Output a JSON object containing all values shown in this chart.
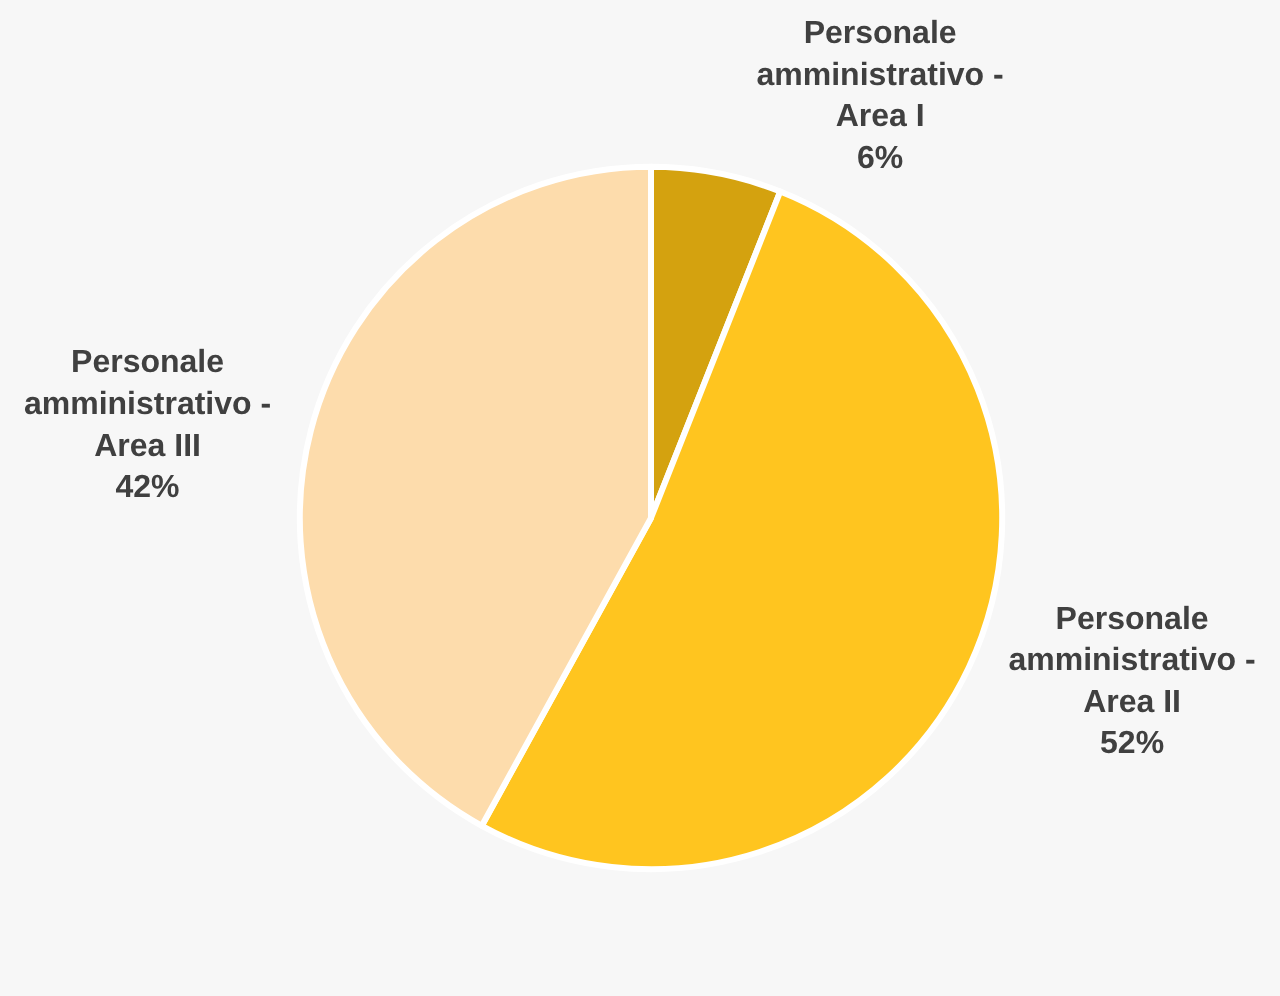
{
  "chart_data": {
    "type": "pie",
    "categories": [
      "Personale amministrativo - Area I",
      "Personale amministrativo - Area II",
      "Personale amministrativo - Area III"
    ],
    "values": [
      6,
      52,
      42
    ],
    "value_labels": [
      "6%",
      "52%",
      "42%"
    ],
    "colors": [
      "#d4a20f",
      "#ffc51f",
      "#fddcac"
    ],
    "legend": false
  }
}
